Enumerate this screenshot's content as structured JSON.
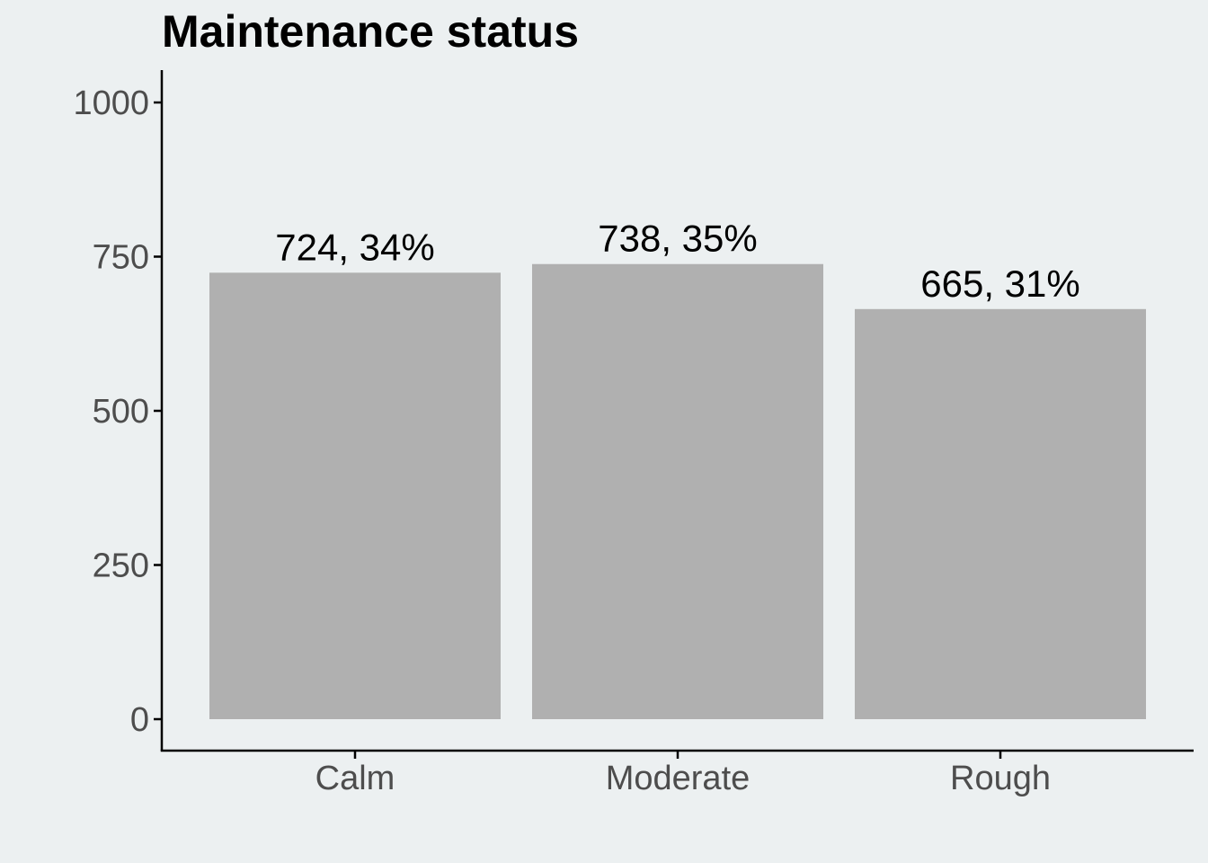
{
  "chart_data": {
    "type": "bar",
    "title": "Maintenance status",
    "xlabel": "",
    "ylabel": "",
    "categories": [
      "Calm",
      "Moderate",
      "Rough"
    ],
    "values": [
      724,
      738,
      665
    ],
    "data_labels": [
      "724, 34%",
      "738, 35%",
      "665, 31%"
    ],
    "ylim": [
      0,
      1050
    ],
    "yticks": [
      0,
      250,
      500,
      750,
      1000
    ],
    "ytick_labels": [
      "0",
      "250",
      "500",
      "750",
      "1000"
    ],
    "grid": false,
    "legend": "none",
    "colors": {
      "background": "#ECF0F1",
      "bar": "#B0B0B0",
      "axis": "#000000",
      "tick_text": "#4D4D4D",
      "label_text": "#000000"
    }
  }
}
